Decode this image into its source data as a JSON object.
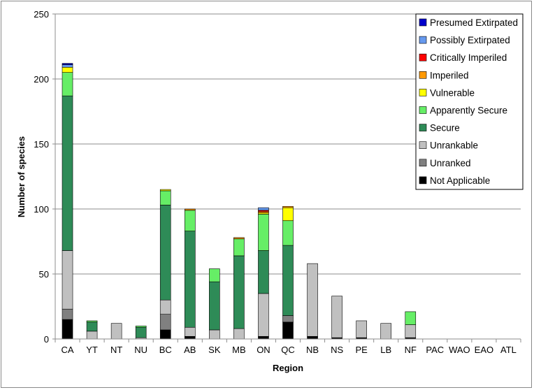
{
  "chart_data": {
    "type": "bar",
    "stacked": true,
    "xlabel": "Region",
    "ylabel": "Number of species",
    "ylim": [
      0,
      250
    ],
    "yticks": [
      0,
      50,
      100,
      150,
      200,
      250
    ],
    "grid": true,
    "legend_position": "top-right",
    "categories": [
      "CA",
      "YT",
      "NT",
      "NU",
      "BC",
      "AB",
      "SK",
      "MB",
      "ON",
      "QC",
      "NB",
      "NS",
      "PE",
      "LB",
      "NF",
      "PAC",
      "WAO",
      "EAO",
      "ATL"
    ],
    "series": [
      {
        "name": "Not Applicable",
        "color": "#000000",
        "values": [
          15,
          0,
          0,
          0,
          7,
          2,
          0,
          0,
          2,
          13,
          2,
          1,
          1,
          0,
          1,
          0,
          0,
          0,
          0
        ]
      },
      {
        "name": "Unranked",
        "color": "#808080",
        "values": [
          8,
          0,
          0,
          0,
          12,
          0,
          0,
          0,
          0,
          5,
          0,
          0,
          0,
          0,
          0,
          0,
          0,
          0,
          0
        ]
      },
      {
        "name": "Unrankable",
        "color": "#c0c0c0",
        "values": [
          45,
          6,
          12,
          1,
          11,
          7,
          7,
          8,
          33,
          0,
          56,
          32,
          13,
          12,
          10,
          0,
          0,
          0,
          0
        ]
      },
      {
        "name": "Secure",
        "color": "#2e8b57",
        "values": [
          119,
          7,
          0,
          8,
          73,
          74,
          37,
          56,
          33,
          54,
          0,
          0,
          0,
          0,
          0,
          0,
          0,
          0,
          0
        ]
      },
      {
        "name": "Apparently Secure",
        "color": "#66ee66",
        "values": [
          18,
          1,
          0,
          1,
          11,
          16,
          10,
          13,
          28,
          19,
          0,
          0,
          0,
          0,
          10,
          0,
          0,
          0,
          0
        ]
      },
      {
        "name": "Vulnerable",
        "color": "#ffff00",
        "values": [
          4,
          0,
          0,
          0,
          1,
          0,
          0,
          0,
          1,
          10,
          0,
          0,
          0,
          0,
          0,
          0,
          0,
          0,
          0
        ]
      },
      {
        "name": "Imperiled",
        "color": "#ff9900",
        "values": [
          0,
          0,
          0,
          0,
          0,
          1,
          0,
          1,
          1,
          1,
          0,
          0,
          0,
          0,
          0,
          0,
          0,
          0,
          0
        ]
      },
      {
        "name": "Critically Imperiled",
        "color": "#ff0000",
        "values": [
          0,
          0,
          0,
          0,
          0,
          0,
          0,
          0,
          1,
          0,
          0,
          0,
          0,
          0,
          0,
          0,
          0,
          0,
          0
        ]
      },
      {
        "name": "Possibly Extirpated",
        "color": "#6699ee",
        "values": [
          2,
          0,
          0,
          0,
          0,
          0,
          0,
          0,
          2,
          0,
          0,
          0,
          0,
          0,
          0,
          0,
          0,
          0,
          0
        ]
      },
      {
        "name": "Presumed Extirpated",
        "color": "#0000cc",
        "values": [
          1,
          0,
          0,
          0,
          0,
          0,
          0,
          0,
          0,
          0,
          0,
          0,
          0,
          0,
          0,
          0,
          0,
          0,
          0
        ]
      }
    ],
    "legend_order": [
      "Presumed Extirpated",
      "Possibly Extirpated",
      "Critically Imperiled",
      "Imperiled",
      "Vulnerable",
      "Apparently Secure",
      "Secure",
      "Unrankable",
      "Unranked",
      "Not Applicable"
    ]
  }
}
